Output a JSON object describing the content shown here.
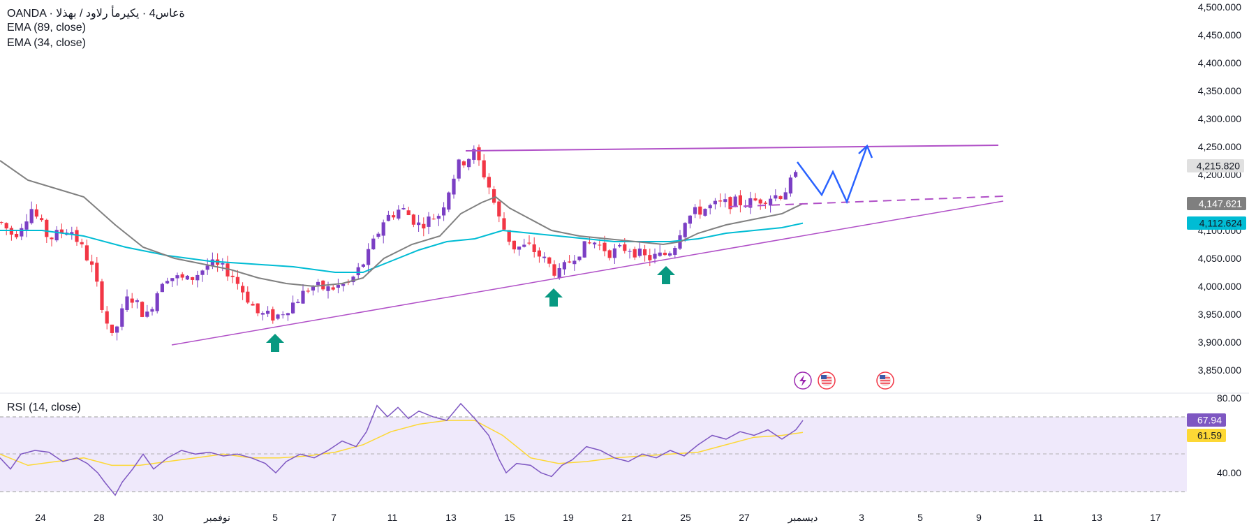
{
  "header": {
    "title": "OANDA · ةعاس4 · يكيرمأ رلاود / بهذلا",
    "ema89_label": "EMA (89, close)",
    "ema34_label": "EMA (34, close)"
  },
  "rsi_panel": {
    "label": "RSI (14, close)"
  },
  "colors": {
    "up": "#7b3fc4",
    "down": "#f23645",
    "ema89": "#00bcd4",
    "ema34": "#808080",
    "trendline": "#b04fc7",
    "forecast": "#2962ff",
    "arrow": "#089981",
    "rsi": "#7e57c2",
    "rsi_ma": "#fdd835"
  },
  "price_labels": {
    "current": "4,215.820",
    "ema34": "4,147.621",
    "ema89": "4,112.624",
    "rsi": "67.94",
    "rsi_ma": "61.59"
  },
  "icons": [
    "lightning-event-icon",
    "us-flag-event-icon",
    "us-flag-event-icon"
  ],
  "chart_data": [
    {
      "type": "candlestick",
      "title": "",
      "ylim": [
        3830,
        4510
      ],
      "y_ticks": [
        "4,500.000",
        "4,450.000",
        "4,400.000",
        "4,350.000",
        "4,300.000",
        "4,250.000",
        "4,200.000",
        "4,150.000",
        "4,100.000",
        "4,050.000",
        "4,000.000",
        "3,950.000",
        "3,900.000",
        "3,850.000"
      ],
      "x_ticks": [
        "24",
        "28",
        "30",
        "نوفمبر",
        "5",
        "7",
        "11",
        "13",
        "15",
        "19",
        "21",
        "25",
        "27",
        "ديسمبر",
        "3",
        "5",
        "9",
        "11",
        "13",
        "17"
      ],
      "series": [
        {
          "name": "EMA (89, close)",
          "last": 4112.624
        },
        {
          "name": "EMA (34, close)",
          "last": 4147.621
        }
      ],
      "last_close": 4215.82
    },
    {
      "type": "line",
      "title": "RSI (14, close)",
      "ylim": [
        20,
        80
      ],
      "y_ticks": [
        "80.00",
        "40.00"
      ],
      "series": [
        {
          "name": "RSI",
          "last": 67.94
        },
        {
          "name": "RSI MA",
          "last": 61.59
        }
      ]
    }
  ]
}
